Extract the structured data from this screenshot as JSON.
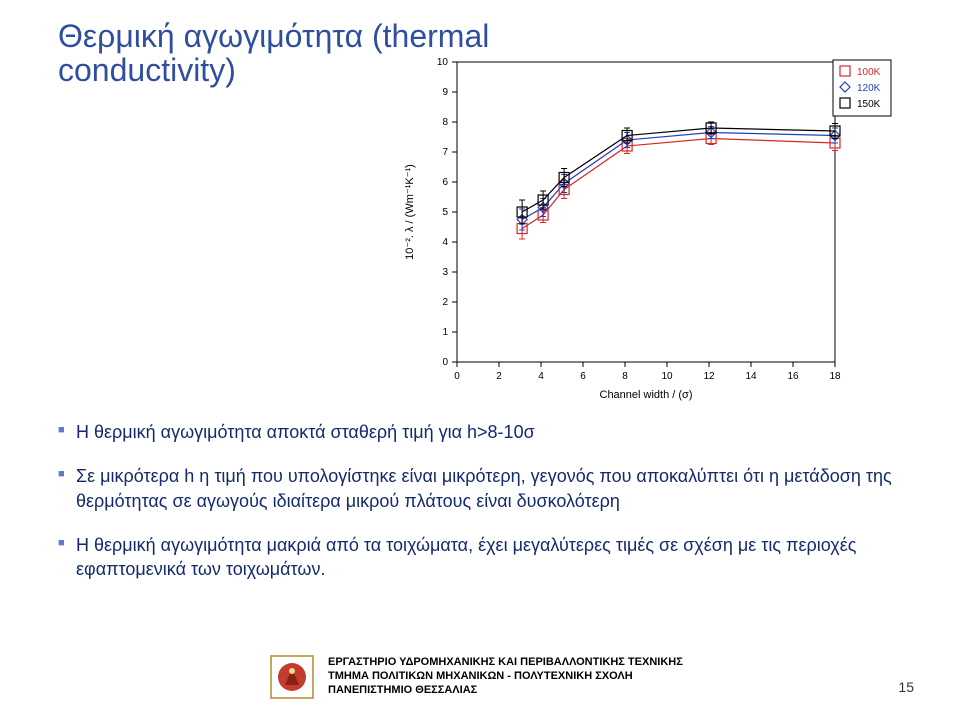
{
  "title_line1": "Θερμική αγωγιμότητα (thermal",
  "title_line2": "conductivity)",
  "title_color": "#2f4f9e",
  "title_fontsize": 32,
  "chart": {
    "type": "line",
    "background_color": "#ffffff",
    "axis_color": "#000000",
    "grid": false,
    "xlim": [
      0,
      18
    ],
    "xtick_step": 2,
    "xticks": [
      0,
      2,
      4,
      6,
      8,
      10,
      12,
      14,
      16,
      18
    ],
    "ylim": [
      0,
      10
    ],
    "ytick_step": 1,
    "yticks": [
      0,
      1,
      2,
      3,
      4,
      5,
      6,
      7,
      8,
      9,
      10
    ],
    "xlabel": "Channel width / (σ)",
    "ylabel": "10⁻². λ / (Wm⁻¹K⁻¹)",
    "label_fontsize": 11,
    "tick_fontsize": 10,
    "line_width": 1.2,
    "marker_size": 5,
    "error_cap": 3,
    "error_color_match_series": true,
    "series": [
      {
        "name": "100K",
        "color": "#d62728",
        "marker": "square",
        "x": [
          3.1,
          4.1,
          5.1,
          8.1,
          12.1,
          18.0
        ],
        "y": [
          4.45,
          4.9,
          5.75,
          7.2,
          7.45,
          7.3
        ],
        "yerr": [
          0.35,
          0.25,
          0.3,
          0.25,
          0.2,
          0.25
        ]
      },
      {
        "name": "120K",
        "color": "#1f3fbf",
        "marker": "diamond",
        "x": [
          3.1,
          4.1,
          5.1,
          8.1,
          12.1,
          18.0
        ],
        "y": [
          4.75,
          5.15,
          5.95,
          7.4,
          7.65,
          7.55
        ],
        "yerr": [
          0.35,
          0.3,
          0.3,
          0.25,
          0.2,
          0.25
        ]
      },
      {
        "name": "150K",
        "color": "#000000",
        "marker": "square",
        "x": [
          3.1,
          4.1,
          5.1,
          8.1,
          12.1,
          18.0
        ],
        "y": [
          5.0,
          5.4,
          6.15,
          7.55,
          7.8,
          7.7
        ],
        "yerr": [
          0.4,
          0.3,
          0.3,
          0.25,
          0.2,
          0.25
        ]
      }
    ],
    "legend": {
      "position": "top-right-outside",
      "border_color": "#000000",
      "background_color": "#ffffff",
      "fontsize": 10,
      "items": [
        "100K",
        "120K",
        "150K"
      ]
    }
  },
  "bullets": [
    "Η θερμική αγωγιμότητα αποκτά σταθερή τιμή για h>8-10σ",
    "Σε μικρότερα h η τιμή που υπολογίστηκε είναι μικρότερη, γεγονός που αποκαλύπτει ότι η μετάδοση της θερμότητας σε αγωγούς ιδιαίτερα μικρού πλάτους είναι δυσκολότερη",
    "Η θερμική αγωγιμότητα μακριά από τα τοιχώματα, έχει μεγαλύτερες τιμές σε σχέση με τις περιοχές εφαπτομενικά των τοιχωμάτων."
  ],
  "bullet_color": "#152a6e",
  "bullet_marker_color": "#5f78c9",
  "bullet_fontsize": 18,
  "footer": {
    "line1": "ΕΡΓΑΣΤΗΡΙΟ ΥΔΡΟΜΗΧΑΝΙΚΗΣ ΚΑΙ ΠΕΡΙΒΑΛΛΟΝΤΙΚΗΣ ΤΕΧΝΙΚΗΣ",
    "line2": "ΤΜΗΜΑ ΠΟΛΙΤΙΚΩΝ ΜΗΧΑΝΙΚΩΝ - ΠΟΛΥΤΕΧΝΙΚΗ ΣΧΟΛΗ",
    "line3": "ΠΑΝΕΠΙΣΤΗΜΙΟ ΘΕΣΣΑΛΙΑΣ",
    "logo_border": "#b28a2e",
    "logo_fill": "#c33d2e"
  },
  "page_number": "15"
}
